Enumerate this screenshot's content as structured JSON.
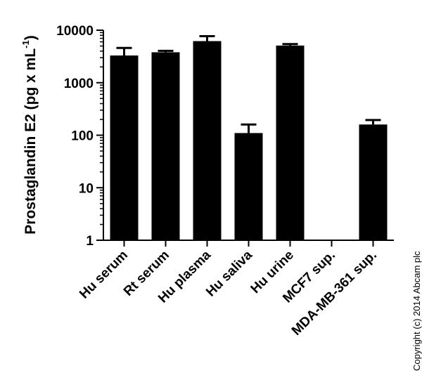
{
  "chart_data": {
    "type": "bar",
    "ylabel_main": "Prostaglandin  E2 (pg x mL",
    "ylabel_sup": "-1",
    "ylabel_close": ")",
    "yscale": "log",
    "ylim": [
      1,
      10000
    ],
    "yticks": [
      1,
      10,
      100,
      1000,
      10000
    ],
    "ytick_labels": [
      "1",
      "10",
      "100",
      "1000",
      "10000"
    ],
    "categories": [
      "Hu serum",
      "Rt serum",
      "Hu plasma",
      "Hu saliva",
      "Hu urine",
      "MCF7 sup.",
      "MDA-MB-361 sup."
    ],
    "values": [
      3300,
      3800,
      6200,
      110,
      5100,
      null,
      160
    ],
    "errors": [
      1300,
      250,
      1500,
      50,
      350,
      null,
      35
    ],
    "bar_color": "#000000",
    "grid": false,
    "legend": "none"
  },
  "copyright": "Copyright (c) 2014 Abcam plc"
}
